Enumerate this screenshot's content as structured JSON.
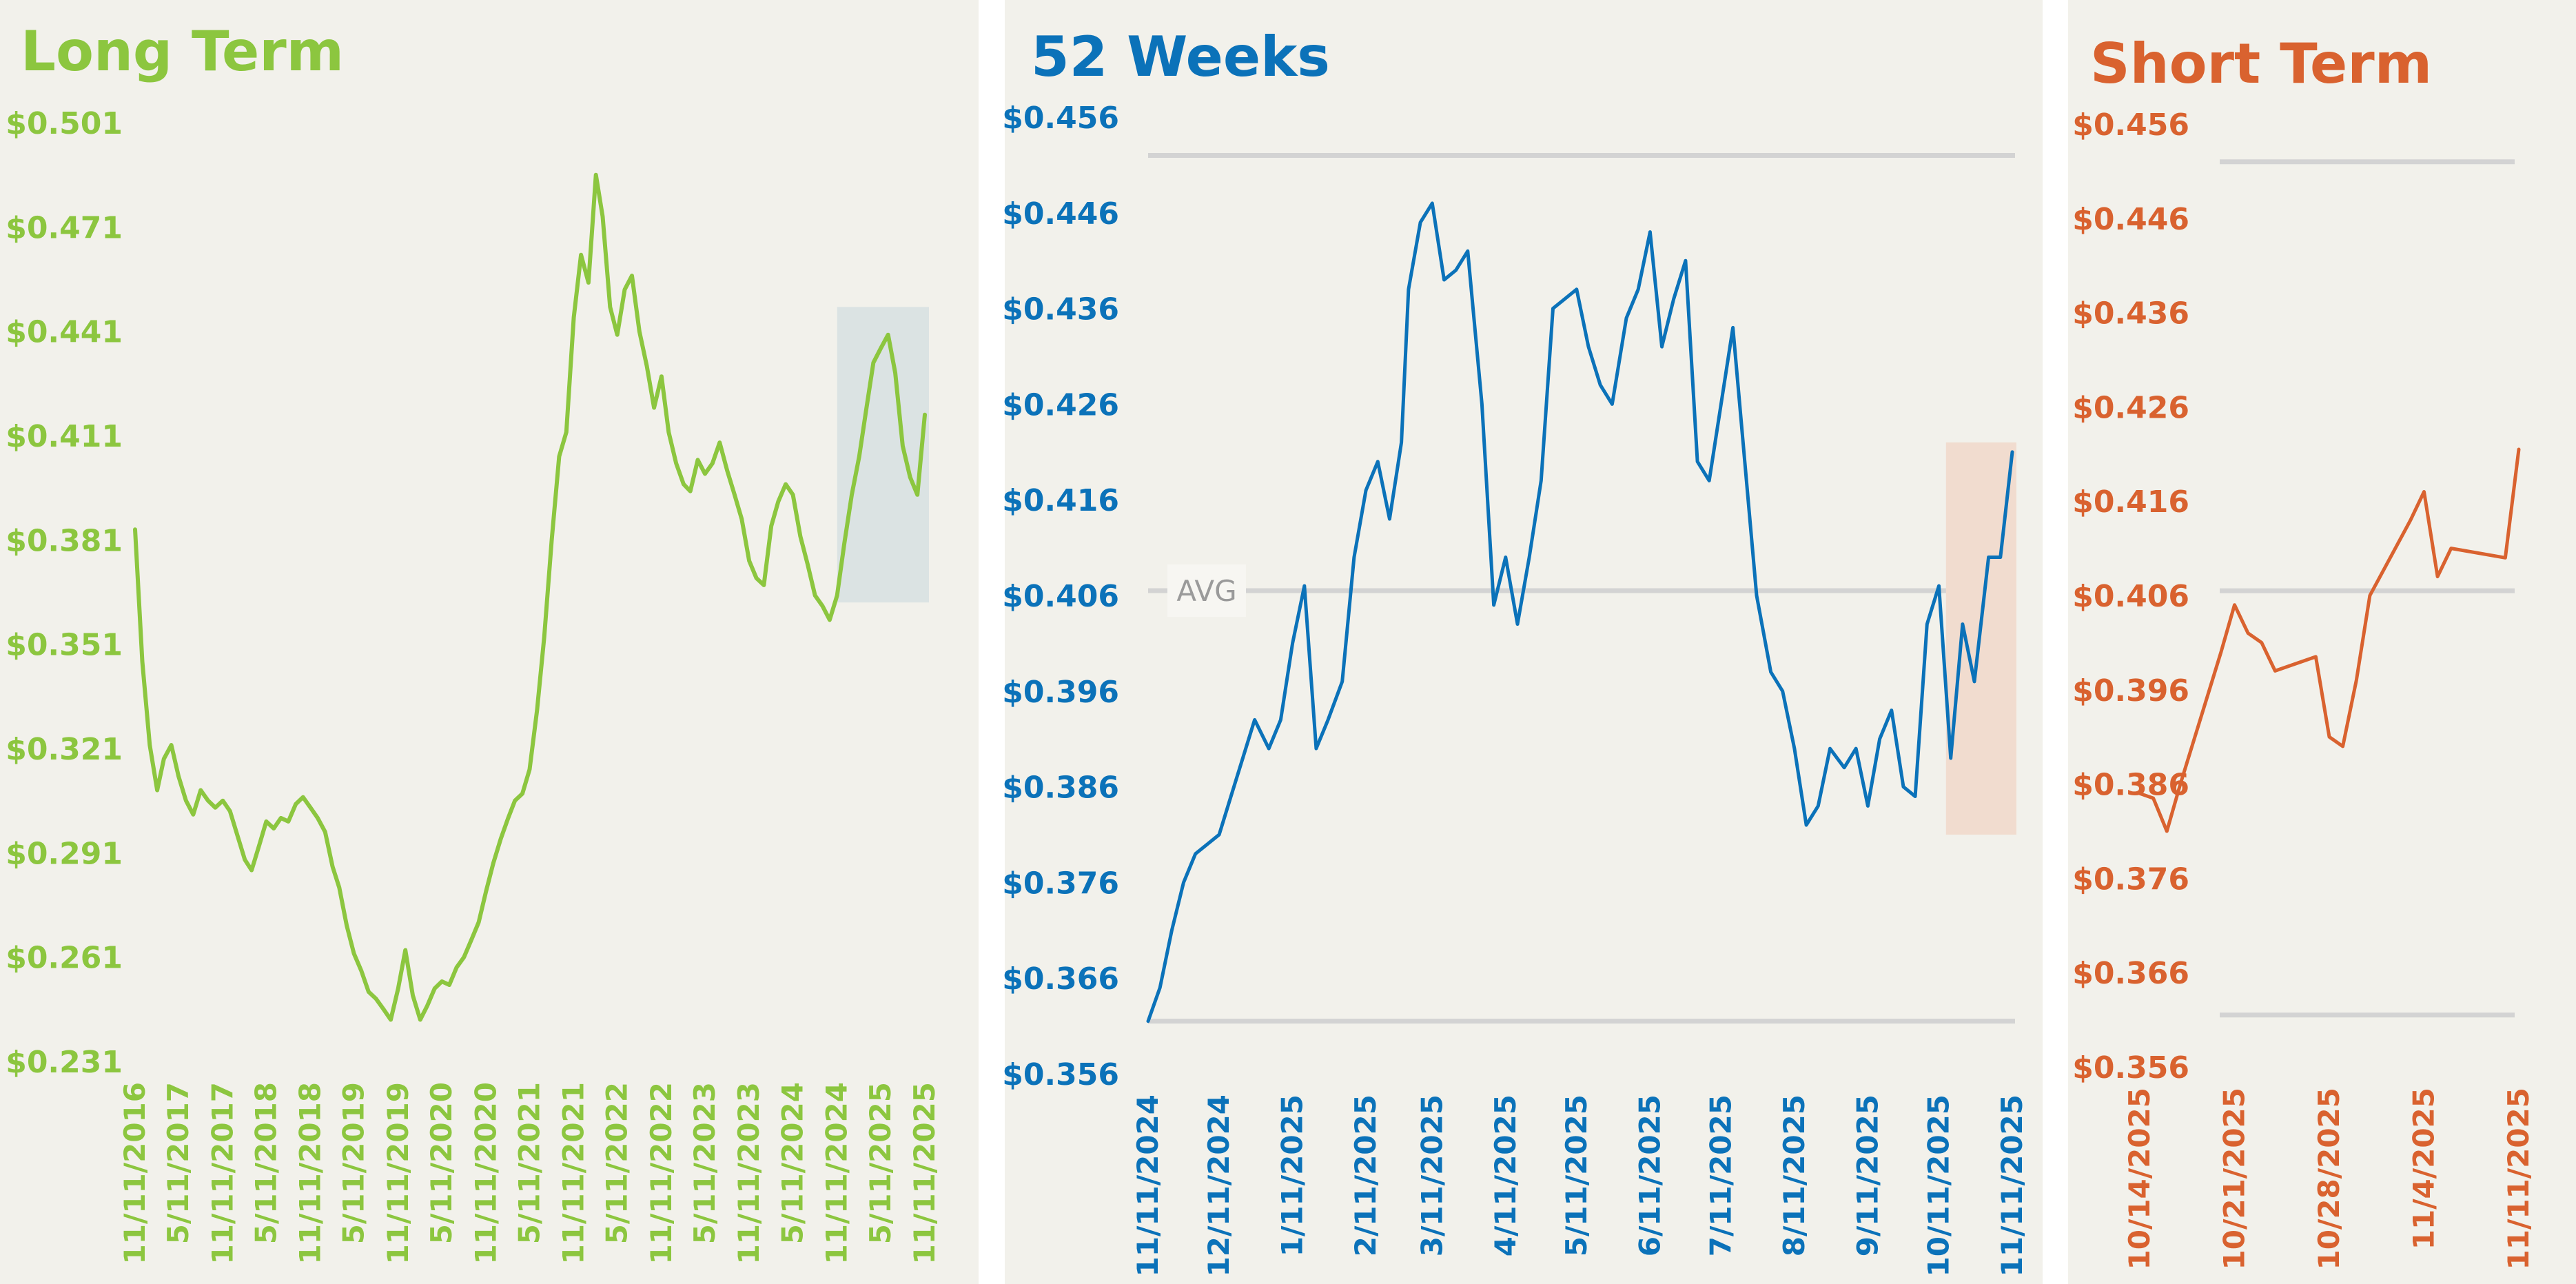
{
  "colors": {
    "panel_bg": "#f2f1eb",
    "long_term": "#8cc63f",
    "weeks_52": "#0b72b9",
    "short_term": "#d9622f",
    "reference_line": "#d3d3d3",
    "highlight_long": "#dbe3e3",
    "highlight_52w": "#f1dccf"
  },
  "chart_data": [
    {
      "type": "line",
      "title": "Long Term",
      "ylim": [
        0.231,
        0.501
      ],
      "y_ticks": [
        "$0.501",
        "$0.471",
        "$0.441",
        "$0.411",
        "$0.381",
        "$0.351",
        "$0.321",
        "$0.291",
        "$0.261",
        "$0.231"
      ],
      "x_ticks": [
        "11/11/2016",
        "5/11/2017",
        "11/11/2017",
        "5/11/2018",
        "11/11/2018",
        "5/11/2019",
        "11/11/2019",
        "5/11/2020",
        "11/11/2020",
        "5/11/2021",
        "11/11/2021",
        "5/11/2022",
        "11/11/2022",
        "5/11/2023",
        "11/11/2023",
        "5/11/2024",
        "11/11/2024",
        "5/11/2025",
        "11/11/2025"
      ],
      "series": [
        {
          "x": [
            "11/11/2016",
            "12/11/2016",
            "1/11/2017",
            "2/11/2017",
            "3/11/2017",
            "4/11/2017",
            "5/11/2017",
            "6/11/2017",
            "7/11/2017",
            "8/11/2017",
            "9/11/2017",
            "10/11/2017",
            "11/11/2017",
            "12/11/2017",
            "1/11/2018",
            "2/11/2018",
            "3/11/2018",
            "4/11/2018",
            "5/11/2018",
            "6/11/2018",
            "7/11/2018",
            "8/11/2018",
            "9/11/2018",
            "10/11/2018",
            "11/11/2018",
            "12/11/2018",
            "1/11/2019",
            "2/11/2019",
            "3/11/2019",
            "4/11/2019",
            "5/11/2019",
            "6/11/2019",
            "7/11/2019",
            "8/11/2019",
            "9/11/2019",
            "10/11/2019",
            "11/11/2019",
            "12/11/2019",
            "1/11/2020",
            "2/11/2020",
            "3/11/2020",
            "4/11/2020",
            "5/11/2020",
            "6/11/2020",
            "7/11/2020",
            "8/11/2020",
            "9/11/2020",
            "10/11/2020",
            "11/11/2020",
            "12/11/2020",
            "1/11/2021",
            "2/11/2021",
            "3/11/2021",
            "4/11/2021",
            "5/11/2021",
            "6/11/2021",
            "7/11/2021",
            "8/11/2021",
            "9/11/2021",
            "10/11/2021",
            "11/11/2021",
            "12/11/2021",
            "1/11/2022",
            "2/11/2022",
            "3/11/2022",
            "4/11/2022",
            "5/11/2022",
            "6/11/2022",
            "7/11/2022",
            "8/11/2022",
            "9/11/2022",
            "10/11/2022",
            "11/11/2022",
            "12/11/2022",
            "1/11/2023",
            "2/11/2023",
            "3/11/2023",
            "4/11/2023",
            "5/11/2023",
            "6/11/2023",
            "7/11/2023",
            "8/11/2023",
            "9/11/2023",
            "10/11/2023",
            "11/11/2023",
            "12/11/2023",
            "1/11/2024",
            "2/11/2024",
            "3/11/2024",
            "4/11/2024",
            "5/11/2024",
            "6/11/2024",
            "7/11/2024",
            "8/11/2024",
            "9/11/2024",
            "10/11/2024",
            "11/11/2024",
            "12/11/2024",
            "1/11/2025",
            "2/11/2025",
            "3/11/2025",
            "4/11/2025",
            "5/11/2025",
            "6/11/2025",
            "7/11/2025",
            "8/11/2025",
            "9/11/2025",
            "10/11/2025",
            "11/11/2025"
          ],
          "y": [
            0.384,
            0.346,
            0.322,
            0.309,
            0.318,
            0.322,
            0.313,
            0.306,
            0.302,
            0.309,
            0.306,
            0.304,
            0.306,
            0.303,
            0.296,
            0.289,
            0.286,
            0.293,
            0.3,
            0.298,
            0.301,
            0.3,
            0.305,
            0.307,
            0.304,
            0.301,
            0.297,
            0.287,
            0.281,
            0.27,
            0.262,
            0.257,
            0.251,
            0.249,
            0.246,
            0.243,
            0.252,
            0.263,
            0.25,
            0.243,
            0.247,
            0.252,
            0.254,
            0.253,
            0.258,
            0.261,
            0.266,
            0.271,
            0.28,
            0.288,
            0.295,
            0.301,
            0.306,
            0.308,
            0.315,
            0.332,
            0.353,
            0.381,
            0.405,
            0.412,
            0.445,
            0.463,
            0.455,
            0.486,
            0.474,
            0.448,
            0.44,
            0.453,
            0.457,
            0.441,
            0.431,
            0.419,
            0.428,
            0.412,
            0.403,
            0.397,
            0.395,
            0.404,
            0.4,
            0.403,
            0.409,
            0.401,
            0.394,
            0.387,
            0.375,
            0.37,
            0.368,
            0.385,
            0.392,
            0.397,
            0.394,
            0.382,
            0.374,
            0.365,
            0.362,
            0.358,
            0.365,
            0.38,
            0.394,
            0.405,
            0.418,
            0.432,
            0.436,
            0.44,
            0.429,
            0.408,
            0.399,
            0.394,
            0.417
          ]
        }
      ],
      "highlight": {
        "x_start": "11/11/2024",
        "x_end": "11/11/2025",
        "y_range": [
          0.363,
          0.448
        ]
      }
    },
    {
      "type": "line",
      "title": "52 Weeks",
      "ylim": [
        0.356,
        0.456
      ],
      "y_ticks": [
        "$0.456",
        "$0.446",
        "$0.436",
        "$0.426",
        "$0.416",
        "$0.406",
        "$0.396",
        "$0.386",
        "$0.376",
        "$0.366",
        "$0.356"
      ],
      "x_ticks": [
        "11/11/2024",
        "12/11/2024",
        "1/11/2025",
        "2/11/2025",
        "3/11/2025",
        "4/11/2025",
        "5/11/2025",
        "6/11/2025",
        "7/11/2025",
        "8/11/2025",
        "9/11/2025",
        "10/11/2025",
        "11/11/2025"
      ],
      "reference_lines": {
        "max": 0.452,
        "avg": 0.4065,
        "min": 0.3615,
        "avg_label": "AVG"
      },
      "series": [
        {
          "x": [
            "11/11/2024",
            "11/16/2024",
            "11/21/2024",
            "11/26/2024",
            "12/1/2024",
            "12/6/2024",
            "12/11/2024",
            "12/16/2024",
            "12/21/2024",
            "12/26/2024",
            "1/1/2025",
            "1/6/2025",
            "1/11/2025",
            "1/16/2025",
            "1/21/2025",
            "1/26/2025",
            "2/1/2025",
            "2/6/2025",
            "2/11/2025",
            "2/16/2025",
            "2/21/2025",
            "2/26/2025",
            "3/1/2025",
            "3/6/2025",
            "3/11/2025",
            "3/16/2025",
            "3/21/2025",
            "3/26/2025",
            "4/1/2025",
            "4/6/2025",
            "4/11/2025",
            "4/16/2025",
            "4/21/2025",
            "4/26/2025",
            "5/1/2025",
            "5/6/2025",
            "5/11/2025",
            "5/16/2025",
            "5/21/2025",
            "5/26/2025",
            "6/1/2025",
            "6/6/2025",
            "6/11/2025",
            "6/16/2025",
            "6/21/2025",
            "6/26/2025",
            "7/1/2025",
            "7/6/2025",
            "7/11/2025",
            "7/16/2025",
            "7/21/2025",
            "7/26/2025",
            "8/1/2025",
            "8/6/2025",
            "8/11/2025",
            "8/16/2025",
            "8/21/2025",
            "8/26/2025",
            "9/1/2025",
            "9/6/2025",
            "9/11/2025",
            "9/16/2025",
            "9/21/2025",
            "9/26/2025",
            "10/1/2025",
            "10/6/2025",
            "10/11/2025",
            "10/16/2025",
            "10/21/2025",
            "10/26/2025",
            "11/1/2025",
            "11/6/2025",
            "11/11/2025"
          ],
          "y": [
            0.3615,
            0.365,
            0.371,
            0.376,
            0.379,
            0.38,
            0.381,
            0.385,
            0.389,
            0.393,
            0.39,
            0.393,
            0.401,
            0.407,
            0.39,
            0.393,
            0.397,
            0.41,
            0.417,
            0.42,
            0.414,
            0.422,
            0.438,
            0.445,
            0.447,
            0.439,
            0.44,
            0.442,
            0.426,
            0.405,
            0.41,
            0.403,
            0.41,
            0.418,
            0.436,
            0.437,
            0.438,
            0.432,
            0.428,
            0.426,
            0.435,
            0.438,
            0.444,
            0.432,
            0.437,
            0.441,
            0.42,
            0.418,
            0.426,
            0.434,
            0.42,
            0.406,
            0.398,
            0.396,
            0.39,
            0.382,
            0.384,
            0.39,
            0.388,
            0.39,
            0.384,
            0.391,
            0.394,
            0.386,
            0.385,
            0.403,
            0.407,
            0.389,
            0.403,
            0.397,
            0.41,
            0.41,
            0.421
          ]
        }
      ],
      "highlight": {
        "x_start": "10/14/2025",
        "x_end": "11/11/2025",
        "y_range": [
          0.381,
          0.422
        ]
      }
    },
    {
      "type": "line",
      "title": "Short Term",
      "ylim": [
        0.356,
        0.456
      ],
      "y_ticks": [
        "$0.456",
        "$0.446",
        "$0.436",
        "$0.426",
        "$0.416",
        "$0.406",
        "$0.396",
        "$0.386",
        "$0.376",
        "$0.366",
        "$0.356"
      ],
      "x_ticks": [
        "10/14/2025",
        "10/21/2025",
        "10/28/2025",
        "11/4/2025",
        "11/11/2025"
      ],
      "reference_lines": {
        "max": 0.452,
        "avg": 0.4065,
        "min": 0.3615
      },
      "series": [
        {
          "x": [
            "10/14/2025",
            "10/15/2025",
            "10/16/2025",
            "10/17/2025",
            "10/20/2025",
            "10/21/2025",
            "10/22/2025",
            "10/23/2025",
            "10/24/2025",
            "10/27/2025",
            "10/28/2025",
            "10/29/2025",
            "10/30/2025",
            "10/31/2025",
            "11/3/2025",
            "11/4/2025",
            "11/5/2025",
            "11/6/2025",
            "11/10/2025",
            "11/11/2025"
          ],
          "y": [
            0.385,
            0.3845,
            0.381,
            0.386,
            0.4,
            0.405,
            0.402,
            0.401,
            0.398,
            0.3995,
            0.391,
            0.39,
            0.397,
            0.406,
            0.414,
            0.417,
            0.408,
            0.411,
            0.41,
            0.4215
          ]
        }
      ]
    }
  ]
}
